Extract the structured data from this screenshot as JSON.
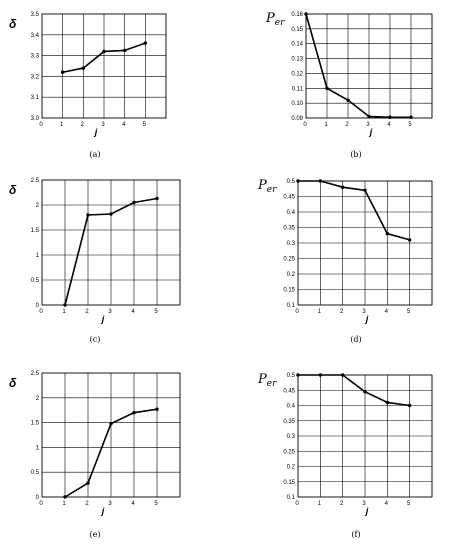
{
  "chart_data": [
    {
      "type": "line",
      "panel": "(a)",
      "ylabel": "δ",
      "xlabel": "j",
      "x": [
        1,
        2,
        3,
        4,
        5
      ],
      "series": [
        {
          "values": [
            3.22,
            3.24,
            3.32,
            3.325,
            3.36
          ]
        }
      ],
      "xlim": [
        0,
        6
      ],
      "ylim": [
        3.0,
        3.5
      ],
      "xticks": [
        "0",
        "1",
        "2",
        "3",
        "4",
        "5"
      ],
      "yticks": [
        "3.0",
        "3.1",
        "3.2",
        "3.3",
        "3.4",
        "3.5"
      ],
      "grid": true
    },
    {
      "type": "line",
      "panel": "(b)",
      "ylabel": "P",
      "ylabel_sub": "er",
      "xlabel": "j",
      "x": [
        0,
        1,
        2,
        3,
        4,
        5
      ],
      "series": [
        {
          "values": [
            0.16,
            0.11,
            0.102,
            0.091,
            0.0905,
            0.0905
          ]
        }
      ],
      "xlim": [
        0,
        6
      ],
      "ylim": [
        0.09,
        0.16
      ],
      "xticks": [
        "0",
        "1",
        "2",
        "3",
        "4",
        "5"
      ],
      "yticks": [
        "0.09",
        "0.10",
        "0.11",
        "0.12",
        "0.13",
        "0.14",
        "0.15",
        "0.16"
      ],
      "grid": true
    },
    {
      "type": "line",
      "panel": "(c)",
      "ylabel": "δ",
      "xlabel": "j",
      "x": [
        1,
        2,
        3,
        4,
        5
      ],
      "series": [
        {
          "values": [
            0,
            1.8,
            1.82,
            2.05,
            2.13
          ]
        }
      ],
      "xlim": [
        0,
        6
      ],
      "ylim": [
        0,
        2.5
      ],
      "xticks": [
        "0",
        "1",
        "2",
        "3",
        "4",
        "5"
      ],
      "yticks": [
        "0",
        "0.5",
        "1",
        "1.5",
        "2",
        "2.5"
      ],
      "grid": true
    },
    {
      "type": "line",
      "panel": "(d)",
      "ylabel": "P",
      "ylabel_sub": "er",
      "xlabel": "j",
      "x": [
        0,
        1,
        2,
        3,
        4,
        5
      ],
      "series": [
        {
          "values": [
            0.5,
            0.5,
            0.48,
            0.47,
            0.33,
            0.31
          ]
        }
      ],
      "xlim": [
        0,
        6
      ],
      "ylim": [
        0.1,
        0.5
      ],
      "xticks": [
        "0",
        "1",
        "2",
        "3",
        "4",
        "5"
      ],
      "yticks": [
        "0.1",
        "0.15",
        "0.2",
        "0.25",
        "0.3",
        "0.35",
        "0.4",
        "0.45",
        "0.5"
      ],
      "grid": true
    },
    {
      "type": "line",
      "panel": "(e)",
      "ylabel": "δ",
      "xlabel": "j",
      "x": [
        1,
        2,
        3,
        4,
        5
      ],
      "series": [
        {
          "values": [
            0,
            0.28,
            1.48,
            1.7,
            1.77
          ]
        }
      ],
      "xlim": [
        0,
        6
      ],
      "ylim": [
        0,
        2.5
      ],
      "xticks": [
        "0",
        "1",
        "2",
        "3",
        "4",
        "5"
      ],
      "yticks": [
        "0",
        "0.5",
        "1",
        "1.5",
        "2",
        "2.5"
      ],
      "grid": true
    },
    {
      "type": "line",
      "panel": "(f)",
      "ylabel": "P",
      "ylabel_sub": "er",
      "xlabel": "j",
      "x": [
        0,
        1,
        2,
        3,
        4,
        5
      ],
      "series": [
        {
          "values": [
            0.5,
            0.5,
            0.5,
            0.445,
            0.41,
            0.4
          ]
        }
      ],
      "xlim": [
        0,
        6
      ],
      "ylim": [
        0.1,
        0.5
      ],
      "xticks": [
        "0",
        "1",
        "2",
        "3",
        "4",
        "5"
      ],
      "yticks": [
        "0.1",
        "0.15",
        "0.2",
        "0.25",
        "0.3",
        "0.35",
        "0.4",
        "0.45",
        "0.5"
      ],
      "grid": true
    }
  ]
}
